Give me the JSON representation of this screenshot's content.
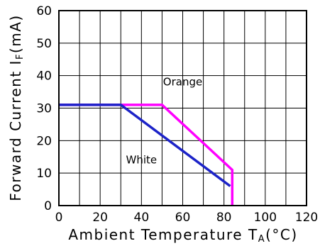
{
  "chart_data": {
    "type": "line",
    "x": {
      "label": "Ambient Temperature T",
      "label_subscript": "A",
      "label_unit": "(°C)",
      "range": [
        0,
        120
      ],
      "ticks": [
        0,
        20,
        40,
        60,
        80,
        100,
        120
      ]
    },
    "y": {
      "label": "Forward Current I",
      "label_subscript": "F",
      "label_unit": "(mA)",
      "range": [
        0,
        60
      ],
      "ticks": [
        0,
        10,
        20,
        30,
        40,
        50,
        60
      ]
    },
    "grid": true,
    "series": [
      {
        "name": "Orange",
        "color": "#ff00ff",
        "points": [
          [
            0,
            31
          ],
          [
            50,
            31
          ],
          [
            84,
            11
          ],
          [
            84,
            0
          ]
        ]
      },
      {
        "name": "White",
        "color": "#1c23c8",
        "points": [
          [
            0,
            31
          ],
          [
            30,
            31
          ],
          [
            83,
            6
          ]
        ]
      }
    ],
    "annotations": [
      {
        "text": "Orange",
        "x": 60,
        "y": 37
      },
      {
        "text": "White",
        "x": 40,
        "y": 13
      }
    ]
  }
}
